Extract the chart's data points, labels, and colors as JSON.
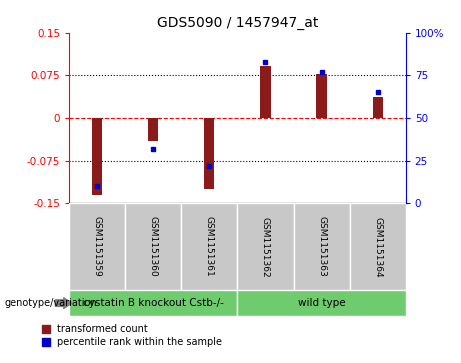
{
  "title": "GDS5090 / 1457947_at",
  "samples": [
    "GSM1151359",
    "GSM1151360",
    "GSM1151361",
    "GSM1151362",
    "GSM1151363",
    "GSM1151364"
  ],
  "red_values": [
    -0.135,
    -0.04,
    -0.125,
    0.092,
    0.077,
    0.037
  ],
  "blue_percentiles": [
    10,
    32,
    22,
    83,
    77,
    65
  ],
  "ylim_left": [
    -0.15,
    0.15
  ],
  "ylim_right": [
    0,
    100
  ],
  "yticks_left": [
    -0.15,
    -0.075,
    0,
    0.075,
    0.15
  ],
  "yticks_right": [
    0,
    25,
    50,
    75,
    100
  ],
  "ytick_labels_left": [
    "-0.15",
    "-0.075",
    "0",
    "0.075",
    "0.15"
  ],
  "ytick_labels_right": [
    "0",
    "25",
    "50",
    "75",
    "100%"
  ],
  "hlines": [
    -0.075,
    0,
    0.075
  ],
  "hline_styles": [
    "dotted",
    "dashed",
    "dotted"
  ],
  "hline_colors": [
    "black",
    "red",
    "black"
  ],
  "bar_color": "#8B1A1A",
  "dot_color": "#0000CD",
  "bar_width": 0.18,
  "group_labels": [
    "cystatin B knockout Cstb-/-",
    "wild type"
  ],
  "group_starts": [
    0,
    3
  ],
  "group_ends": [
    2,
    5
  ],
  "group_color": "#6ECC6E",
  "sample_bg_color": "#C8C8C8",
  "group_label_text": "genotype/variation",
  "legend_red": "transformed count",
  "legend_blue": "percentile rank within the sample",
  "background_color": "#ffffff",
  "plot_bg": "#ffffff",
  "title_fontsize": 10,
  "tick_fontsize": 7.5,
  "sample_fontsize": 6.5,
  "group_fontsize": 7.5
}
